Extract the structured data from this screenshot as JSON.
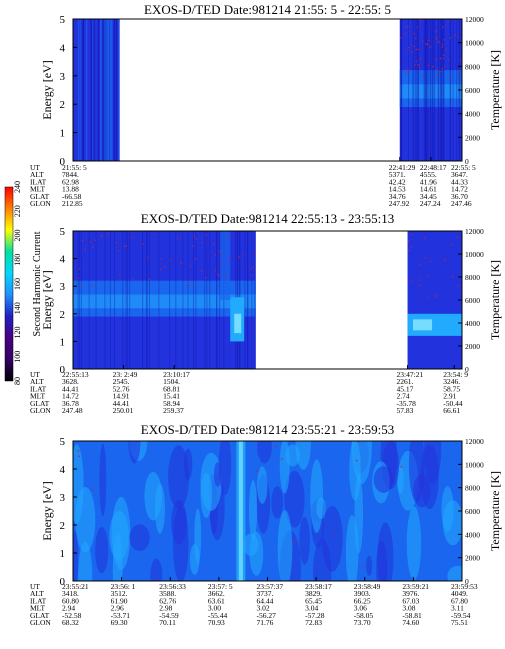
{
  "colors": {
    "background": "#2233dd",
    "mid": "#1a66ee",
    "high": "#22aaff",
    "peak": "#77ddff",
    "dark": "#1111aa",
    "speckle": "#bb2244",
    "gap": "#ffffff"
  },
  "chart_data": [
    {
      "type": "heatmap",
      "title": "EXOS-D/TED   Date:981214  21:55: 5 - 22:55: 5",
      "ylabel": "Energy [eV]",
      "ylabel_right": "Temperature [K]",
      "ylim": [
        0,
        5
      ],
      "ylim_right": [
        0,
        12000
      ],
      "y_ticks": [
        "0",
        "1",
        "2",
        "3",
        "4",
        "5"
      ],
      "y_ticks_right": [
        "0",
        "2000",
        "4000",
        "6000",
        "8000",
        "10000",
        "12000"
      ],
      "data_segments": [
        {
          "from": 0.0,
          "to": 0.12,
          "level": "dark"
        },
        {
          "from": 0.84,
          "to": 1.0,
          "level": "band_2_3"
        }
      ],
      "row_labels": [
        "UT",
        "ALT",
        "ILAT",
        "MLT",
        "GLAT",
        "GLON"
      ],
      "columns": [
        {
          "pos": 0.0,
          "values": [
            "21:55: 5",
            "7844.",
            "62.98",
            "13.88",
            "-66.58",
            "212.85"
          ]
        },
        {
          "pos": 0.84,
          "values": [
            "22:41:29",
            "5371.",
            "42.42",
            "14.53",
            "34.76",
            "247.92"
          ]
        },
        {
          "pos": 0.92,
          "values": [
            "22:48:17",
            "4555.",
            "41.96",
            "14.61",
            "34.45",
            "247.24"
          ]
        },
        {
          "pos": 1.0,
          "values": [
            "22:55: 5",
            "3647.",
            "44.33",
            "14.72",
            "36.70",
            "247.46"
          ]
        }
      ]
    },
    {
      "type": "heatmap",
      "title": "EXOS-D/TED   Date:981214  22:55:13 - 23:55:13",
      "ylabel": "Energy [eV]",
      "ylabel_right": "Temperature [K]",
      "ylim": [
        0,
        5
      ],
      "ylim_right": [
        0,
        12000
      ],
      "y_ticks": [
        "0",
        "1",
        "2",
        "3",
        "4",
        "5"
      ],
      "y_ticks_right": [
        "0",
        "2000",
        "4000",
        "6000",
        "8000",
        "10000",
        "12000"
      ],
      "data_segments": [
        {
          "from": 0.0,
          "to": 0.47,
          "level": "band_2_3"
        },
        {
          "from": 0.86,
          "to": 1.0,
          "level": "band_1_2"
        }
      ],
      "row_labels": [
        "UT",
        "ALT",
        "ILAT",
        "MLT",
        "GLAT",
        "GLON"
      ],
      "columns": [
        {
          "pos": 0.0,
          "values": [
            "22:55:13",
            "3628.",
            "44.41",
            "14.72",
            "36.78",
            "247.48"
          ]
        },
        {
          "pos": 0.13,
          "values": [
            "23: 2:49",
            "2545.",
            "52.76",
            "14.91",
            "44.41",
            "250.01"
          ]
        },
        {
          "pos": 0.26,
          "values": [
            "23:10:17",
            "1504.",
            "68.81",
            "15.41",
            "58.94",
            "259.37"
          ]
        },
        {
          "pos": 0.86,
          "values": [
            "23:47:21",
            "2261.",
            "45.17",
            "2.74",
            "-35.78",
            "57.83"
          ]
        },
        {
          "pos": 0.98,
          "values": [
            "23:54: 9",
            "3246.",
            "58.75",
            "2.91",
            "-50.44",
            "66.61"
          ]
        }
      ]
    },
    {
      "type": "heatmap",
      "title": "EXOS-D/TED   Date:981214  23:55:21 - 23:59:53",
      "ylabel": "Energy [eV]",
      "ylabel_right": "Temperature [K]",
      "ylim": [
        0,
        5
      ],
      "ylim_right": [
        0,
        12000
      ],
      "y_ticks": [
        "0",
        "1",
        "2",
        "3",
        "4",
        "5"
      ],
      "y_ticks_right": [
        "0",
        "2000",
        "4000",
        "6000",
        "8000",
        "10000",
        "12000"
      ],
      "data_segments": [
        {
          "from": 0.0,
          "to": 1.0,
          "level": "full"
        }
      ],
      "row_labels": [
        "UT",
        "ALT",
        "ILAT",
        "MLT",
        "GLAT",
        "GLON"
      ],
      "columns": [
        {
          "pos": 0.0,
          "values": [
            "23:55:21",
            "3418.",
            "60.80",
            "2.94",
            "-52.58",
            "68.32"
          ]
        },
        {
          "pos": 0.125,
          "values": [
            "23:56: 1",
            "3512.",
            "61.90",
            "2.96",
            "-53.71",
            "69.30"
          ]
        },
        {
          "pos": 0.25,
          "values": [
            "23:56:33",
            "3588.",
            "62.76",
            "2.98",
            "-54.59",
            "70.11"
          ]
        },
        {
          "pos": 0.375,
          "values": [
            "23:57: 5",
            "3662.",
            "63.61",
            "3.00",
            "-55.44",
            "70.93"
          ]
        },
        {
          "pos": 0.5,
          "values": [
            "23:57:37",
            "3737.",
            "64.44",
            "3.02",
            "-56.27",
            "71.76"
          ]
        },
        {
          "pos": 0.625,
          "values": [
            "23:58:17",
            "3829.",
            "65.45",
            "3.04",
            "-57.28",
            "72.83"
          ]
        },
        {
          "pos": 0.75,
          "values": [
            "23:58:49",
            "3903.",
            "66.25",
            "3.06",
            "-58.05",
            "73.70"
          ]
        },
        {
          "pos": 0.875,
          "values": [
            "23:59:21",
            "3976.",
            "67.03",
            "3.08",
            "-58.81",
            "74.60"
          ]
        },
        {
          "pos": 1.0,
          "values": [
            "23:59:53",
            "4049.",
            "67.80",
            "3.11",
            "-59.54",
            "75.51"
          ]
        }
      ]
    }
  ],
  "colorbar": {
    "label": "Second Harmonic Current",
    "ticks": [
      "80",
      "100",
      "120",
      "140",
      "160",
      "180",
      "200",
      "220",
      "240"
    ],
    "range": [
      80,
      240
    ],
    "colors": [
      "#000000",
      "#330066",
      "#4b0082",
      "#2020c0",
      "#1e90ff",
      "#00d8ff",
      "#00e0a0",
      "#ffff00",
      "#ff8000",
      "#ff0000"
    ]
  }
}
